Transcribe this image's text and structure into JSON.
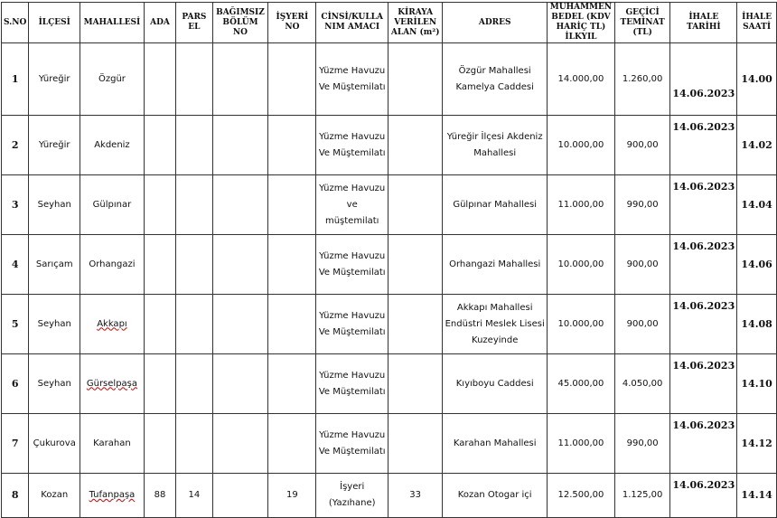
{
  "headers": [
    "S.NO",
    "İLÇESİ",
    "MAHALLESİ",
    "ADA",
    "PARS EL",
    "BAĞIMSIZ BÖLÜM NO",
    "İŞYERİ NO",
    "CİNSİ/KULLA NIM AMACI",
    "KİRAYA VERİLEN ALAN (m²)",
    "ADRES",
    "MUHAMMEN BEDEL (KDV HARİÇ TL) İLKYIL",
    "GEÇİCİ TEMİNAT (TL)",
    "İHALE TARİHİ",
    "İHALE SAATİ"
  ],
  "rows": [
    {
      "sno": "1",
      "ilce": "Yüreğir",
      "mahalle": "Özgür",
      "ada": "",
      "parsel": "",
      "bagimsiz": "",
      "isyeri": "",
      "cins": "Yüzme Havuzu Ve Müştemilatı",
      "alan": "",
      "adres": "Özgür Mahallesi Kamelya Caddesi",
      "bedel": "14.000,00",
      "teminat": "1.260,00",
      "tarih": "14.06.2023",
      "saat": "14.00"
    },
    {
      "sno": "2",
      "ilce": "Yüreğir",
      "mahalle": "Akdeniz",
      "ada": "",
      "parsel": "",
      "bagimsiz": "",
      "isyeri": "",
      "cins": "Yüzme Havuzu Ve Müştemilatı",
      "alan": "",
      "adres": "Yüreğir İlçesi Akdeniz Mahallesi",
      "bedel": "10.000,00",
      "teminat": "900,00",
      "tarih": "14.06.2023",
      "saat": "14.02"
    },
    {
      "sno": "3",
      "ilce": "Seyhan",
      "mahalle": "Gülpınar",
      "ada": "",
      "parsel": "",
      "bagimsiz": "",
      "isyeri": "",
      "cins": "Yüzme Havuzu ve müştemilatı",
      "alan": "",
      "adres": "Gülpınar Mahallesi",
      "bedel": "11.000,00",
      "teminat": "990,00",
      "tarih": "14.06.2023",
      "saat": "14.04"
    },
    {
      "sno": "4",
      "ilce": "Sarıçam",
      "mahalle": "Orhangazi",
      "ada": "",
      "parsel": "",
      "bagimsiz": "",
      "isyeri": "",
      "cins": "Yüzme Havuzu Ve Müştemilatı",
      "alan": "",
      "adres": "Orhangazi Mahallesi",
      "bedel": "10.000,00",
      "teminat": "900,00",
      "tarih": "14.06.2023",
      "saat": "14.06"
    },
    {
      "sno": "5",
      "ilce": "Seyhan",
      "mahalle": "Akkapı",
      "ada": "",
      "parsel": "",
      "bagimsiz": "",
      "isyeri": "",
      "cins": "Yüzme Havuzu Ve Müştemilatı",
      "alan": "",
      "adres": "Akkapı Mahallesi Endüstri Meslek Lisesi Kuzeyinde",
      "bedel": "10.000,00",
      "teminat": "900,00",
      "tarih": "14.06.2023",
      "saat": "14.08"
    },
    {
      "sno": "6",
      "ilce": "Seyhan",
      "mahalle": "Gürselpaşa",
      "ada": "",
      "parsel": "",
      "bagimsiz": "",
      "isyeri": "",
      "cins": "Yüzme Havuzu Ve Müştemilatı",
      "alan": "",
      "adres": "Kıyıboyu Caddesi",
      "bedel": "45.000,00",
      "teminat": "4.050,00",
      "tarih": "14.06.2023",
      "saat": "14.10"
    },
    {
      "sno": "7",
      "ilce": "Çukurova",
      "mahalle": "Karahan",
      "ada": "",
      "parsel": "",
      "bagimsiz": "",
      "isyeri": "",
      "cins": "Yüzme Havuzu Ve Müştemilatı",
      "alan": "",
      "adres": "Karahan Mahallesi",
      "bedel": "11.000,00",
      "teminat": "990,00",
      "tarih": "14.06.2023",
      "saat": "14.12"
    },
    {
      "sno": "8",
      "ilce": "Kozan",
      "mahalle": "Tufanpaşa",
      "ada": "88",
      "parsel": "14",
      "bagimsiz": "",
      "isyeri": "19",
      "cins": "İşyeri (Yazıhane)",
      "alan": "33",
      "adres": "Kozan Otogar içi",
      "bedel": "12.500,00",
      "teminat": "1.125,00",
      "tarih": "14.06.2023",
      "saat": "14.14"
    }
  ]
}
